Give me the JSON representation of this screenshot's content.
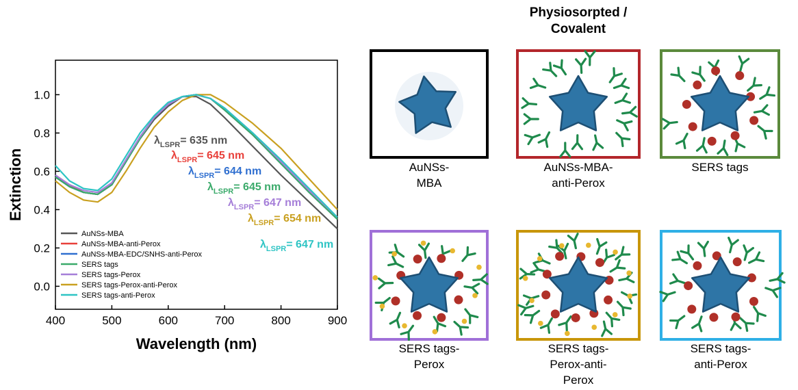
{
  "chart_data": {
    "type": "line",
    "xlabel": "Wavelength (nm)",
    "ylabel": "Extinction",
    "x": [
      400,
      425,
      450,
      475,
      500,
      525,
      550,
      575,
      600,
      625,
      650,
      675,
      700,
      750,
      800,
      850,
      900
    ],
    "xlim": [
      400,
      900
    ],
    "xticks": [
      400,
      500,
      600,
      700,
      800,
      900
    ],
    "ylim": [
      -0.12,
      1.18
    ],
    "yticks": [
      {
        "value": 0,
        "label": "0.0"
      },
      {
        "value": 0.2,
        "label": "0.2"
      },
      {
        "value": 0.4,
        "label": "0.4"
      },
      {
        "value": 0.6,
        "label": "0.6"
      },
      {
        "value": 0.8,
        "label": "0.8"
      },
      {
        "value": 1,
        "label": "1.0"
      }
    ],
    "legend": "lower left",
    "series": [
      {
        "name": "AuNSs-MBA",
        "color": "#555555",
        "values": [
          0.57,
          0.52,
          0.49,
          0.48,
          0.53,
          0.65,
          0.77,
          0.87,
          0.94,
          0.99,
          0.99,
          0.95,
          0.88,
          0.73,
          0.58,
          0.44,
          0.3
        ]
      },
      {
        "name": "AuNSs-MBA-anti-Perox",
        "color": "#e8403a",
        "values": [
          0.58,
          0.53,
          0.49,
          0.48,
          0.53,
          0.65,
          0.78,
          0.88,
          0.95,
          0.99,
          1.0,
          0.98,
          0.92,
          0.79,
          0.64,
          0.49,
          0.35
        ]
      },
      {
        "name": "AuNSs-MBA-EDC/SNHS-anti-Perox",
        "color": "#2f6fd0",
        "values": [
          0.58,
          0.52,
          0.49,
          0.48,
          0.53,
          0.65,
          0.78,
          0.88,
          0.95,
          0.99,
          1.0,
          0.98,
          0.92,
          0.79,
          0.64,
          0.49,
          0.35
        ]
      },
      {
        "name": "SERS tags",
        "color": "#3aaa6a",
        "values": [
          0.57,
          0.52,
          0.49,
          0.48,
          0.53,
          0.65,
          0.77,
          0.88,
          0.95,
          0.99,
          1.0,
          0.98,
          0.92,
          0.79,
          0.64,
          0.49,
          0.35
        ]
      },
      {
        "name": "SERS tags-Perox",
        "color": "#a57ed8",
        "values": [
          0.58,
          0.53,
          0.5,
          0.49,
          0.54,
          0.66,
          0.78,
          0.88,
          0.95,
          0.99,
          1.0,
          0.98,
          0.93,
          0.8,
          0.65,
          0.5,
          0.36
        ]
      },
      {
        "name": "SERS tags-Perox-anti-Perox",
        "color": "#c9a020",
        "values": [
          0.55,
          0.49,
          0.45,
          0.44,
          0.49,
          0.6,
          0.72,
          0.83,
          0.91,
          0.97,
          1.0,
          1.0,
          0.96,
          0.85,
          0.72,
          0.56,
          0.4
        ]
      },
      {
        "name": "SERS tags-anti-Perox",
        "color": "#2ec4c4",
        "values": [
          0.63,
          0.55,
          0.51,
          0.5,
          0.56,
          0.68,
          0.8,
          0.89,
          0.96,
          0.99,
          1.0,
          0.98,
          0.93,
          0.8,
          0.66,
          0.51,
          0.36
        ]
      }
    ],
    "annotations": [
      {
        "symbol": "λ",
        "subscript": "LSPR",
        "text": "= 635 nm",
        "color": "#555555"
      },
      {
        "symbol": "λ",
        "subscript": "LSPR",
        "text": "= 645 nm",
        "color": "#e8403a"
      },
      {
        "symbol": "λ",
        "subscript": "LSPR",
        "text": "= 644 nm",
        "color": "#2f6fd0"
      },
      {
        "symbol": "λ",
        "subscript": "LSPR",
        "text": "= 645 nm",
        "color": "#3aaa6a"
      },
      {
        "symbol": "λ",
        "subscript": "LSPR",
        "text": "= 647 nm",
        "color": "#a57ed8"
      },
      {
        "symbol": "λ",
        "subscript": "LSPR",
        "text": "= 654 nm",
        "color": "#c9a020"
      },
      {
        "symbol": "λ",
        "subscript": "LSPR",
        "text": "= 647 nm",
        "color": "#2ec4c4"
      }
    ]
  },
  "header": {
    "title": [
      "Physiosorpted /",
      "Covalent"
    ]
  },
  "panels": [
    {
      "label": [
        "AuNSs-",
        "MBA"
      ]
    },
    {
      "label": [
        "AuNSs-MBA-",
        "anti-Perox"
      ]
    },
    {
      "label": [
        "SERS tags"
      ]
    },
    {
      "label": [
        "SERS tags-",
        "Perox"
      ]
    },
    {
      "label": [
        "SERS tags-",
        "Perox-anti-",
        "Perox"
      ]
    },
    {
      "label": [
        "SERS tags-",
        "anti-Perox"
      ]
    }
  ]
}
